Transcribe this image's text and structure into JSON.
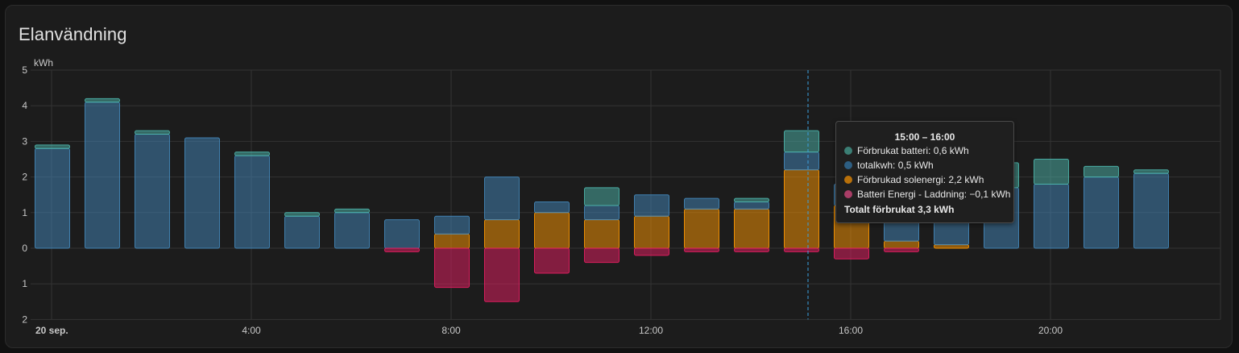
{
  "card": {
    "title": "Elanvändning"
  },
  "chart_data": {
    "type": "bar",
    "stacked": true,
    "unit_label": "kWh",
    "ylim": [
      -2,
      5
    ],
    "yticks": [
      {
        "value": 5,
        "label": "5"
      },
      {
        "value": 4,
        "label": "4"
      },
      {
        "value": 3,
        "label": "3"
      },
      {
        "value": 2,
        "label": "2"
      },
      {
        "value": 1,
        "label": "1"
      },
      {
        "value": 0,
        "label": "0"
      },
      {
        "value": -1,
        "label": "1"
      },
      {
        "value": -2,
        "label": "2"
      }
    ],
    "xticks": [
      {
        "hour": 0,
        "label": "20 sep.",
        "bold": true
      },
      {
        "hour": 4,
        "label": "4:00",
        "bold": false
      },
      {
        "hour": 8,
        "label": "8:00",
        "bold": false
      },
      {
        "hour": 12,
        "label": "12:00",
        "bold": false
      },
      {
        "hour": 16,
        "label": "16:00",
        "bold": false
      },
      {
        "hour": 20,
        "label": "20:00",
        "bold": false
      }
    ],
    "hours": [
      0,
      1,
      2,
      3,
      4,
      5,
      6,
      7,
      8,
      9,
      10,
      11,
      12,
      13,
      14,
      15,
      16,
      17,
      18,
      19,
      20,
      21,
      22
    ],
    "series": [
      {
        "name": "Förbrukad solenergi",
        "color": "#ff9800",
        "values": [
          0,
          0,
          0,
          0,
          0,
          0,
          0,
          0,
          0.4,
          0.8,
          1.0,
          0.8,
          0.9,
          1.1,
          1.1,
          2.2,
          1.2,
          0.2,
          0.1,
          0,
          0,
          0,
          0
        ]
      },
      {
        "name": "totalkwh",
        "color": "#4488bb",
        "values": [
          2.8,
          4.1,
          3.2,
          3.1,
          2.6,
          0.9,
          1.0,
          0.8,
          0.5,
          1.2,
          0.3,
          0.4,
          0.6,
          0.3,
          0.2,
          0.5,
          0.6,
          0.7,
          0.8,
          1.7,
          1.8,
          2.0,
          2.1
        ]
      },
      {
        "name": "Förbrukat batteri",
        "color": "#4db6ac",
        "values": [
          0.1,
          0.1,
          0.1,
          0,
          0.1,
          0.1,
          0.1,
          0,
          0,
          0,
          0,
          0.5,
          0,
          0,
          0.1,
          0.6,
          0,
          0,
          0,
          0.7,
          0.7,
          0.3,
          0.1
        ]
      },
      {
        "name": "Batteri Energi - Laddning",
        "color": "#e91e63",
        "values": [
          0,
          0,
          0,
          0,
          0,
          0,
          0,
          -0.1,
          -1.1,
          -1.5,
          -0.7,
          -0.4,
          -0.2,
          -0.1,
          -0.1,
          -0.1,
          -0.3,
          -0.1,
          0,
          0,
          0,
          0,
          0
        ]
      }
    ],
    "cursor_hour": 15,
    "tooltip": {
      "title": "15:00 – 16:00",
      "rows": [
        {
          "label": "Förbrukat batteri: 0,6 kWh",
          "color": "#4db6ac"
        },
        {
          "label": "totalkwh: 0,5 kWh",
          "color": "#4488bb"
        },
        {
          "label": "Förbrukad solenergi: 2,2 kWh",
          "color": "#ff9800"
        },
        {
          "label": "Batteri Energi - Laddning: −0,1 kWh",
          "color": "#e91e63"
        }
      ],
      "total": "Totalt förbrukat 3,3 kWh"
    }
  }
}
